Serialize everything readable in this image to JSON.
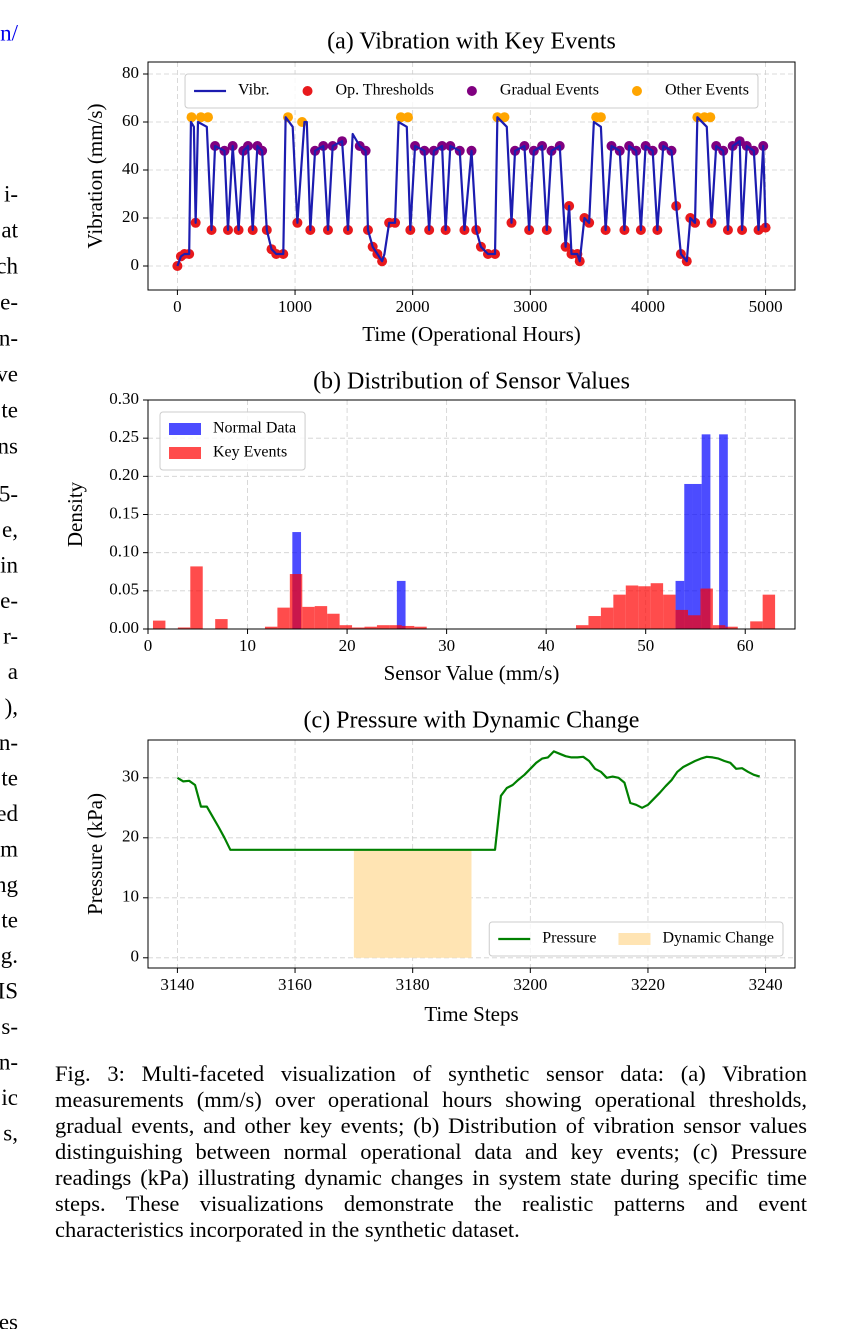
{
  "left_column": {
    "link": "n/",
    "block1": [
      "i-",
      "at",
      "ch",
      "e-",
      "n-",
      "ve",
      "te",
      "ns"
    ],
    "block2": [
      "5-",
      "e,",
      "in",
      "e-",
      "r-",
      "a",
      "),",
      "n-",
      "te",
      "ed",
      "m",
      "ng",
      "te",
      "g.",
      "IS",
      "s-",
      "n-",
      "ic",
      "s,"
    ],
    "bottom": "es"
  },
  "chart_data": [
    {
      "type": "line",
      "title": "(a) Vibration with Key Events",
      "x_label": "Time (Operational Hours)",
      "y_label": "Vibration (mm/s)",
      "xlim": [
        -250,
        5250
      ],
      "ylim": [
        -10,
        85
      ],
      "xticks": [
        0,
        1000,
        2000,
        3000,
        4000,
        5000
      ],
      "yticks": [
        0,
        20,
        40,
        60,
        80
      ],
      "grid": true,
      "legend": "upper center",
      "legend_ncol": 4,
      "series": [
        {
          "name": "Vibr.",
          "type": "line",
          "color": "#1c1cb0",
          "x": [
            0,
            30,
            60,
            100,
            115,
            140,
            155,
            175,
            250,
            290,
            320,
            400,
            430,
            470,
            520,
            560,
            600,
            640,
            680,
            720,
            760,
            800,
            840,
            900,
            920,
            980,
            1020,
            1080,
            1100,
            1130,
            1170,
            1240,
            1280,
            1320,
            1400,
            1450,
            1490,
            1550,
            1600,
            1620,
            1660,
            1700,
            1740,
            1760,
            1800,
            1850,
            1880,
            1950,
            1980,
            2020,
            2100,
            2140,
            2180,
            2250,
            2280,
            2320,
            2400,
            2440,
            2500,
            2540,
            2580,
            2640,
            2700,
            2720,
            2800,
            2840,
            2870,
            2950,
            2990,
            3030,
            3100,
            3140,
            3180,
            3250,
            3300,
            3330,
            3350,
            3400,
            3420,
            3460,
            3500,
            3540,
            3600,
            3640,
            3690,
            3760,
            3800,
            3840,
            3900,
            3940,
            3980,
            4040,
            4080,
            4130,
            4200,
            4240,
            4280,
            4330,
            4360,
            4400,
            4420,
            4500,
            4540,
            4580,
            4640,
            4680,
            4720,
            4780,
            4800,
            4840,
            4900,
            4940,
            4980,
            5000
          ],
          "values": [
            0,
            4,
            5,
            5,
            60,
            58,
            18,
            60,
            58,
            15,
            50,
            48,
            15,
            50,
            15,
            48,
            50,
            15,
            50,
            48,
            15,
            7,
            5,
            5,
            62,
            58,
            18,
            60,
            60,
            15,
            48,
            50,
            15,
            50,
            52,
            15,
            55,
            50,
            48,
            15,
            8,
            5,
            2,
            5,
            18,
            18,
            60,
            58,
            15,
            50,
            48,
            15,
            48,
            50,
            15,
            50,
            48,
            15,
            48,
            15,
            8,
            5,
            5,
            62,
            58,
            18,
            48,
            50,
            15,
            48,
            50,
            15,
            48,
            50,
            8,
            25,
            5,
            5,
            2,
            20,
            18,
            60,
            58,
            15,
            50,
            48,
            15,
            50,
            48,
            15,
            50,
            48,
            15,
            50,
            48,
            25,
            5,
            2,
            20,
            18,
            62,
            58,
            18,
            50,
            48,
            15,
            50,
            52,
            15,
            50,
            48,
            15,
            50,
            16
          ]
        },
        {
          "name": "Op. Thresholds",
          "type": "scatter",
          "color": "#e8191c",
          "x": [
            0,
            30,
            60,
            100,
            155,
            290,
            430,
            520,
            640,
            760,
            800,
            840,
            900,
            1020,
            1130,
            1280,
            1450,
            1620,
            1660,
            1700,
            1740,
            1800,
            1850,
            1980,
            2140,
            2280,
            2440,
            2540,
            2580,
            2640,
            2700,
            2840,
            2990,
            3140,
            3300,
            3330,
            3350,
            3400,
            3420,
            3460,
            3500,
            3640,
            3800,
            3940,
            4080,
            4240,
            4280,
            4330,
            4360,
            4400,
            4540,
            4680,
            4800,
            4940,
            5000
          ],
          "values": [
            0,
            4,
            5,
            5,
            18,
            15,
            15,
            15,
            15,
            15,
            7,
            5,
            5,
            18,
            15,
            15,
            15,
            15,
            8,
            5,
            2,
            18,
            18,
            15,
            15,
            15,
            15,
            15,
            8,
            5,
            5,
            18,
            15,
            15,
            8,
            25,
            5,
            5,
            2,
            20,
            18,
            15,
            15,
            15,
            15,
            25,
            5,
            2,
            20,
            18,
            18,
            15,
            15,
            15,
            16
          ]
        },
        {
          "name": "Gradual Events",
          "type": "scatter",
          "color": "#800080",
          "x": [
            320,
            400,
            470,
            560,
            600,
            680,
            720,
            1170,
            1240,
            1320,
            1400,
            1550,
            1600,
            2020,
            2100,
            2180,
            2250,
            2320,
            2400,
            2500,
            2870,
            2950,
            3030,
            3100,
            3180,
            3250,
            3690,
            3760,
            3840,
            3900,
            3980,
            4040,
            4130,
            4200,
            4580,
            4640,
            4720,
            4780,
            4840,
            4900,
            4980
          ],
          "values": [
            50,
            48,
            50,
            48,
            50,
            50,
            48,
            48,
            50,
            50,
            52,
            50,
            48,
            50,
            48,
            48,
            50,
            50,
            48,
            48,
            48,
            50,
            48,
            50,
            48,
            50,
            50,
            48,
            50,
            48,
            50,
            48,
            50,
            48,
            50,
            48,
            50,
            52,
            50,
            48,
            50
          ]
        },
        {
          "name": "Other Events",
          "type": "scatter",
          "color": "#ffa500",
          "x": [
            120,
            200,
            260,
            940,
            1060,
            1900,
            1960,
            2720,
            2780,
            3560,
            3600,
            4420,
            4480,
            4530
          ],
          "values": [
            62,
            62,
            62,
            62,
            60,
            62,
            62,
            62,
            62,
            62,
            62,
            62,
            62,
            62
          ]
        }
      ]
    },
    {
      "type": "histogram",
      "title": "(b) Distribution of Sensor Values",
      "x_label": "Sensor Value (mm/s)",
      "y_label": "Density",
      "xlim": [
        0,
        65
      ],
      "ylim": [
        0,
        0.3
      ],
      "xticks": [
        0,
        10,
        20,
        30,
        40,
        50,
        60
      ],
      "yticks": [
        {
          "value": 0,
          "label": "0.00"
        },
        {
          "value": 0.05,
          "label": "0.05"
        },
        {
          "value": 0.1,
          "label": "0.10"
        },
        {
          "value": 0.15,
          "label": "0.15"
        },
        {
          "value": 0.2,
          "label": "0.20"
        },
        {
          "value": 0.25,
          "label": "0.25"
        },
        {
          "value": 0.3,
          "label": "0.30"
        }
      ],
      "grid": true,
      "legend": "upper left",
      "legend_ncol": 1,
      "series": [
        {
          "name": "Normal Data",
          "color": "#0000ff",
          "bins": [
            14.5,
            15.375,
            16.25,
            17.125,
            18,
            18.875,
            19.75,
            20.625,
            21.5,
            22.375,
            23.25,
            24.125,
            25,
            25.875,
            26.75,
            27.625,
            28.5,
            29.375,
            30.25,
            31.125,
            32,
            32.875,
            33.75,
            34.625,
            35.5,
            36.375,
            37.25,
            38.125,
            39,
            39.875,
            40.75,
            41.625,
            42.5,
            43.375,
            44.25,
            45.125,
            46,
            46.875,
            47.75,
            48.625,
            49.5,
            50.375,
            51.25,
            52.125,
            53,
            53.875,
            54.75,
            55.625,
            56.5,
            57.375,
            58.25
          ],
          "values": [
            0.127,
            0,
            0,
            0,
            0,
            0,
            0,
            0,
            0,
            0,
            0,
            0,
            0.063,
            0,
            0,
            0,
            0,
            0,
            0,
            0,
            0,
            0,
            0,
            0,
            0,
            0,
            0,
            0,
            0,
            0,
            0,
            0,
            0,
            0,
            0,
            0,
            0,
            0,
            0,
            0,
            0,
            0,
            0,
            0,
            0.063,
            0.19,
            0.19,
            0.255,
            0,
            0.255
          ]
        },
        {
          "name": "Key Events",
          "color": "#ff0000",
          "bins": [
            0.5,
            1.75,
            3,
            4.25,
            5.5,
            6.75,
            8,
            9.25,
            10.5,
            11.75,
            13,
            14.25,
            15.5,
            16.75,
            18,
            19.25,
            20.5,
            21.75,
            23,
            24.25,
            25.5,
            26.75,
            28,
            29.25,
            30.5,
            31.75,
            33,
            34.25,
            35.5,
            36.75,
            38,
            39.25,
            40.5,
            41.75,
            43,
            44.25,
            45.5,
            46.75,
            48,
            49.25,
            50.5,
            51.75,
            53,
            54.25,
            55.5,
            56.75,
            58,
            59.25,
            60.5,
            61.75,
            63
          ],
          "values": [
            0.011,
            0,
            0.002,
            0.082,
            0,
            0.013,
            0,
            0,
            0,
            0.003,
            0.028,
            0.072,
            0.029,
            0.03,
            0.02,
            0.005,
            0.002,
            0.003,
            0.005,
            0.005,
            0.004,
            0.003,
            0,
            0,
            0,
            0,
            0,
            0,
            0,
            0,
            0,
            0,
            0,
            0,
            0.005,
            0.017,
            0.028,
            0.045,
            0.057,
            0.056,
            0.06,
            0.045,
            0.025,
            0.018,
            0.053,
            0.005,
            0.003,
            0,
            0.01,
            0.045
          ]
        }
      ]
    },
    {
      "type": "line",
      "title": "(c) Pressure with Dynamic Change",
      "x_label": "Time Steps",
      "y_label": "Pressure (kPa)",
      "xlim": [
        3135,
        3245
      ],
      "ylim": [
        -1.7,
        36.3
      ],
      "xticks": [
        3140,
        3160,
        3180,
        3200,
        3220,
        3240
      ],
      "yticks": [
        0,
        10,
        20,
        30
      ],
      "grid": true,
      "legend": "lower right",
      "legend_ncol": 2,
      "series": [
        {
          "name": "Pressure",
          "type": "line",
          "color": "#008000",
          "x": [
            3140,
            3141,
            3142,
            3143,
            3144,
            3145,
            3146,
            3147,
            3148,
            3149,
            3194,
            3195,
            3196,
            3197,
            3198,
            3199,
            3200,
            3201,
            3202,
            3203,
            3204,
            3205,
            3206,
            3207,
            3208,
            3209,
            3210,
            3211,
            3212,
            3213,
            3214,
            3215,
            3216,
            3217,
            3218,
            3219,
            3220,
            3221,
            3222,
            3223,
            3224,
            3225,
            3226,
            3227,
            3228,
            3229,
            3230,
            3231,
            3232,
            3233,
            3234,
            3235,
            3236,
            3237,
            3238,
            3239
          ],
          "values": [
            30,
            29.4,
            29.5,
            28.8,
            25.2,
            25.2,
            23.5,
            21.8,
            20,
            18,
            18,
            27,
            28.3,
            28.8,
            29.7,
            30.5,
            31.5,
            32.5,
            33.2,
            33.4,
            34.4,
            34,
            33.6,
            33.4,
            33.4,
            33.5,
            32.8,
            31.5,
            31,
            30,
            30.2,
            30,
            29.2,
            25.8,
            25.5,
            25,
            25.5,
            26.5,
            27.5,
            28.6,
            29.6,
            31,
            31.8,
            32.3,
            32.8,
            33.2,
            33.5,
            33.4,
            33.2,
            32.8,
            32.5,
            31.5,
            31.6,
            31,
            30.5,
            30.2
          ]
        }
      ],
      "span": {
        "name": "Dynamic Change",
        "color": "#ffe4b3",
        "x0": 3170,
        "x1": 3190,
        "y0": 0,
        "y1": 18
      }
    }
  ],
  "caption": "Fig. 3: Multi-faceted visualization of synthetic sensor data: (a) Vibration measurements (mm/s) over operational hours showing operational thresholds, gradual events, and other key events; (b) Distribution of vibration sensor values distinguishing between normal operational data and key events; (c) Pressure readings (kPa) illustrating dynamic changes in system state during specific time steps. These visualizations demonstrate the realistic patterns and event characteristics incorporated in the synthetic dataset."
}
